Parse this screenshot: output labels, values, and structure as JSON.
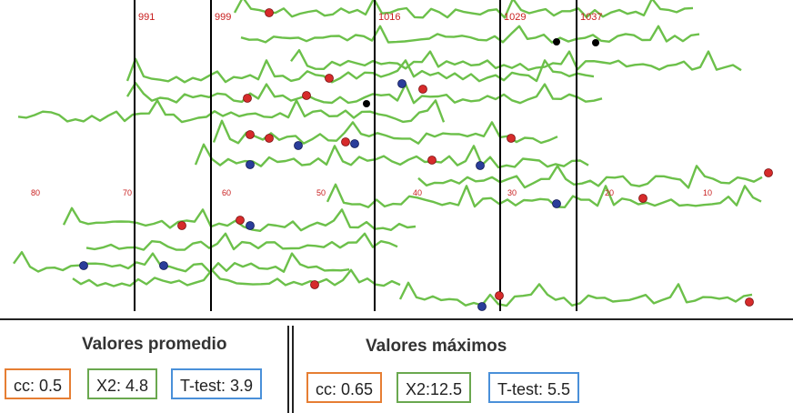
{
  "marker_labels": [
    "991",
    "999",
    "1016",
    "1029",
    "1037"
  ],
  "scale_labels": [
    "80",
    "70",
    "60",
    "50",
    "40",
    "30",
    "20",
    "10"
  ],
  "colors": {
    "waveform": "#6cc04a",
    "divider": "#000000",
    "red_marker": "#d62b2b",
    "blue_marker": "#2a3d9a",
    "black_marker": "#000000",
    "label_red": "#c81e1e",
    "cc_border": "#e67e33",
    "x2_border": "#6aa84f",
    "ttest_border": "#4a90d9"
  },
  "summary": {
    "average": {
      "title": "Valores promedio",
      "cc": "cc: 0.5",
      "x2": "X2: 4.8",
      "ttest": "T-test: 3.9"
    },
    "maximum": {
      "title": "Valores máximos",
      "cc": "cc: 0.65",
      "x2": "X2:12.5",
      "ttest": "T-test: 5.5"
    }
  }
}
